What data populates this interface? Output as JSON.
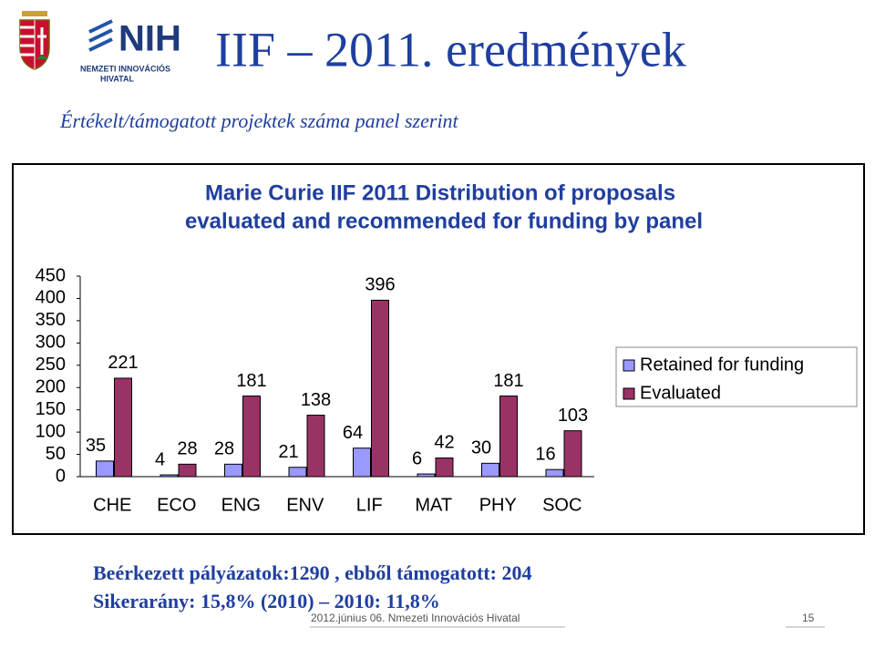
{
  "header": {
    "title": "IIF – 2011. eredmények",
    "subtitle": "Értékelt/támogatott projektek száma panel szerint"
  },
  "logo": {
    "name": "NIH",
    "lines": [
      "NEMZETI INNOVÁCIÓS",
      "HIVATAL"
    ]
  },
  "chart_data": {
    "type": "bar",
    "title": [
      "Marie Curie IIF 2011 Distribution of proposals",
      "evaluated and recommended for funding by panel"
    ],
    "categories": [
      "CHE",
      "ECO",
      "ENG",
      "ENV",
      "LIF",
      "MAT",
      "PHY",
      "SOC"
    ],
    "series": [
      {
        "name": "Retained for funding",
        "color": "#9999ff",
        "values": [
          35,
          4,
          28,
          21,
          64,
          6,
          30,
          16
        ]
      },
      {
        "name": "Evaluated",
        "color": "#993366",
        "values": [
          221,
          28,
          181,
          138,
          396,
          42,
          181,
          103
        ]
      }
    ],
    "ylim": [
      0,
      450
    ],
    "yticks": [
      0,
      50,
      100,
      150,
      200,
      250,
      300,
      350,
      400,
      450
    ],
    "grid": false,
    "legend": "right"
  },
  "notes": [
    "Beérkezett pályázatok:1290 , ebből támogatott: 204",
    "Sikerarány: 15,8% (2010) – 2010: 11,8%"
  ],
  "footer": {
    "text": "2012.június 06. Nmezeti Innovációs Hivatal",
    "page": "15"
  }
}
